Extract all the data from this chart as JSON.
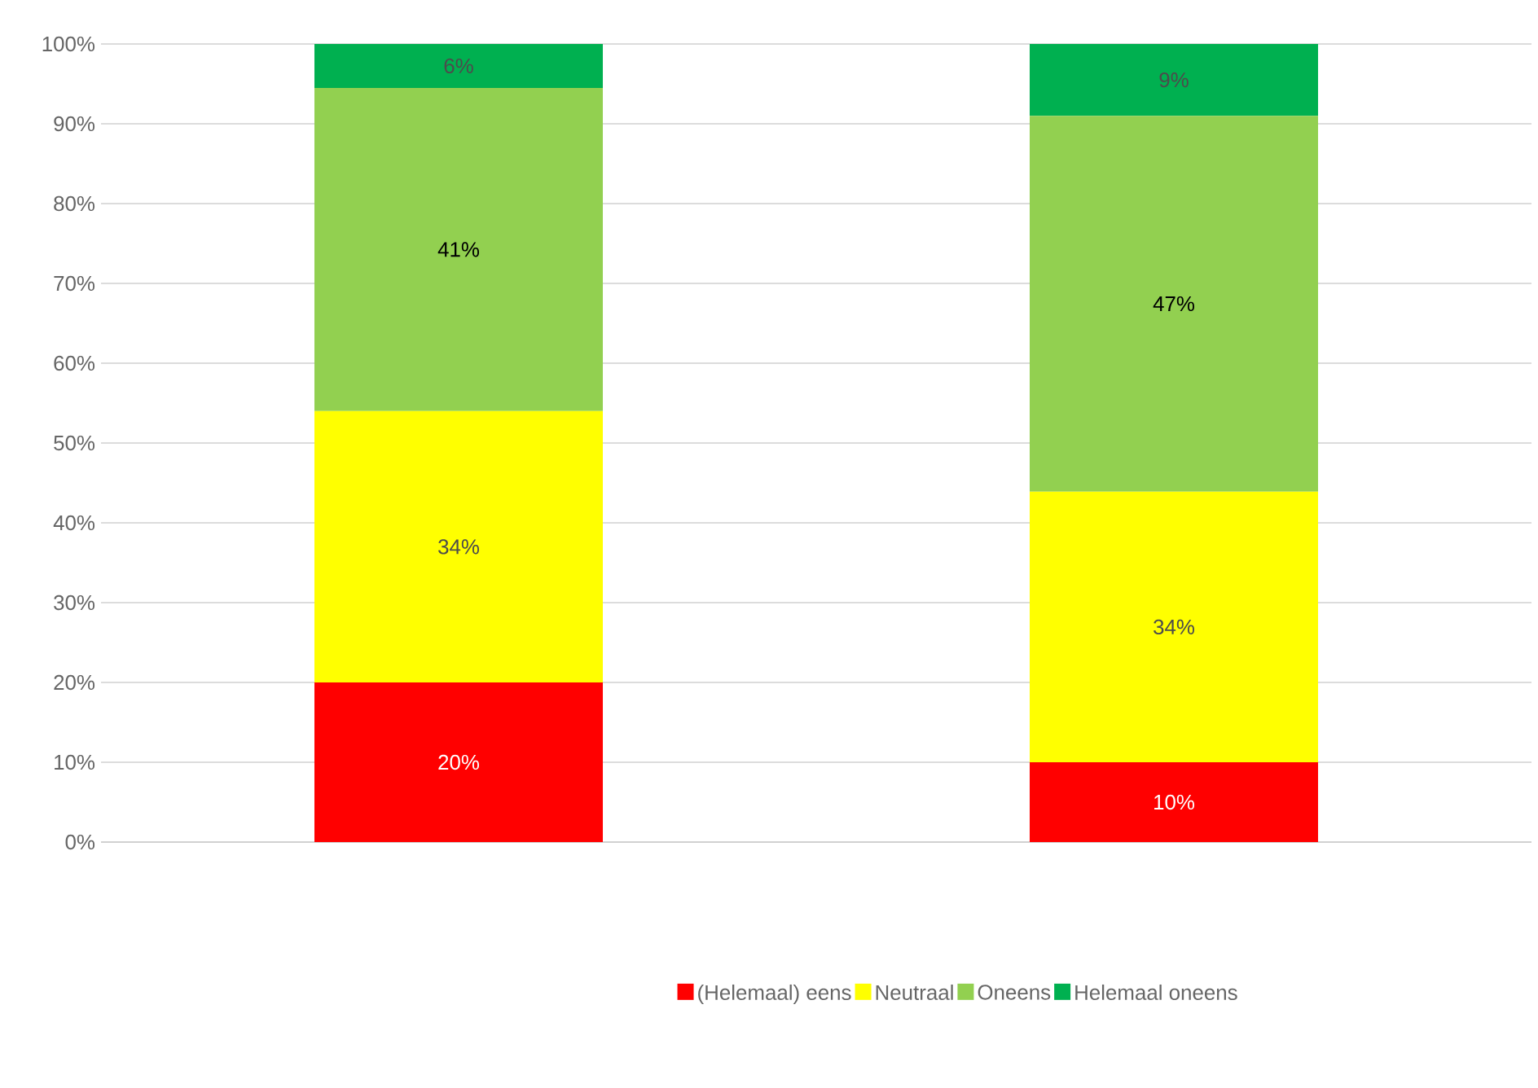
{
  "chart_data": {
    "type": "bar",
    "stacked": true,
    "categories": [
      null,
      null
    ],
    "series": [
      {
        "name": "(Helemaal) eens",
        "color": "#ff0000",
        "values": [
          20,
          10
        ],
        "value_labels": [
          "20%",
          "10%"
        ]
      },
      {
        "name": "Neutraal",
        "color": "#ffff00",
        "values": [
          34,
          33.9
        ],
        "value_labels": [
          "34%",
          "34%"
        ]
      },
      {
        "name": "Oneens",
        "color": "#92d050",
        "values": [
          40.5,
          47.1
        ],
        "value_labels": [
          "41%",
          "47%"
        ]
      },
      {
        "name": "Helemaal oneens",
        "color": "#00b050",
        "values": [
          5.5,
          9.0
        ],
        "value_labels": [
          "6%",
          "9%"
        ]
      }
    ],
    "ylim": [
      0,
      100
    ],
    "yticks": [
      {
        "value": 0,
        "label": "0%"
      },
      {
        "value": 10,
        "label": "10%"
      },
      {
        "value": 20,
        "label": "20%"
      },
      {
        "value": 30,
        "label": "30%"
      },
      {
        "value": 40,
        "label": "40%"
      },
      {
        "value": 50,
        "label": "50%"
      },
      {
        "value": 60,
        "label": "60%"
      },
      {
        "value": 70,
        "label": "70%"
      },
      {
        "value": 80,
        "label": "80%"
      },
      {
        "value": 90,
        "label": "90%"
      },
      {
        "value": 100,
        "label": "100%"
      }
    ],
    "grid": "y",
    "legend": "bottom"
  }
}
